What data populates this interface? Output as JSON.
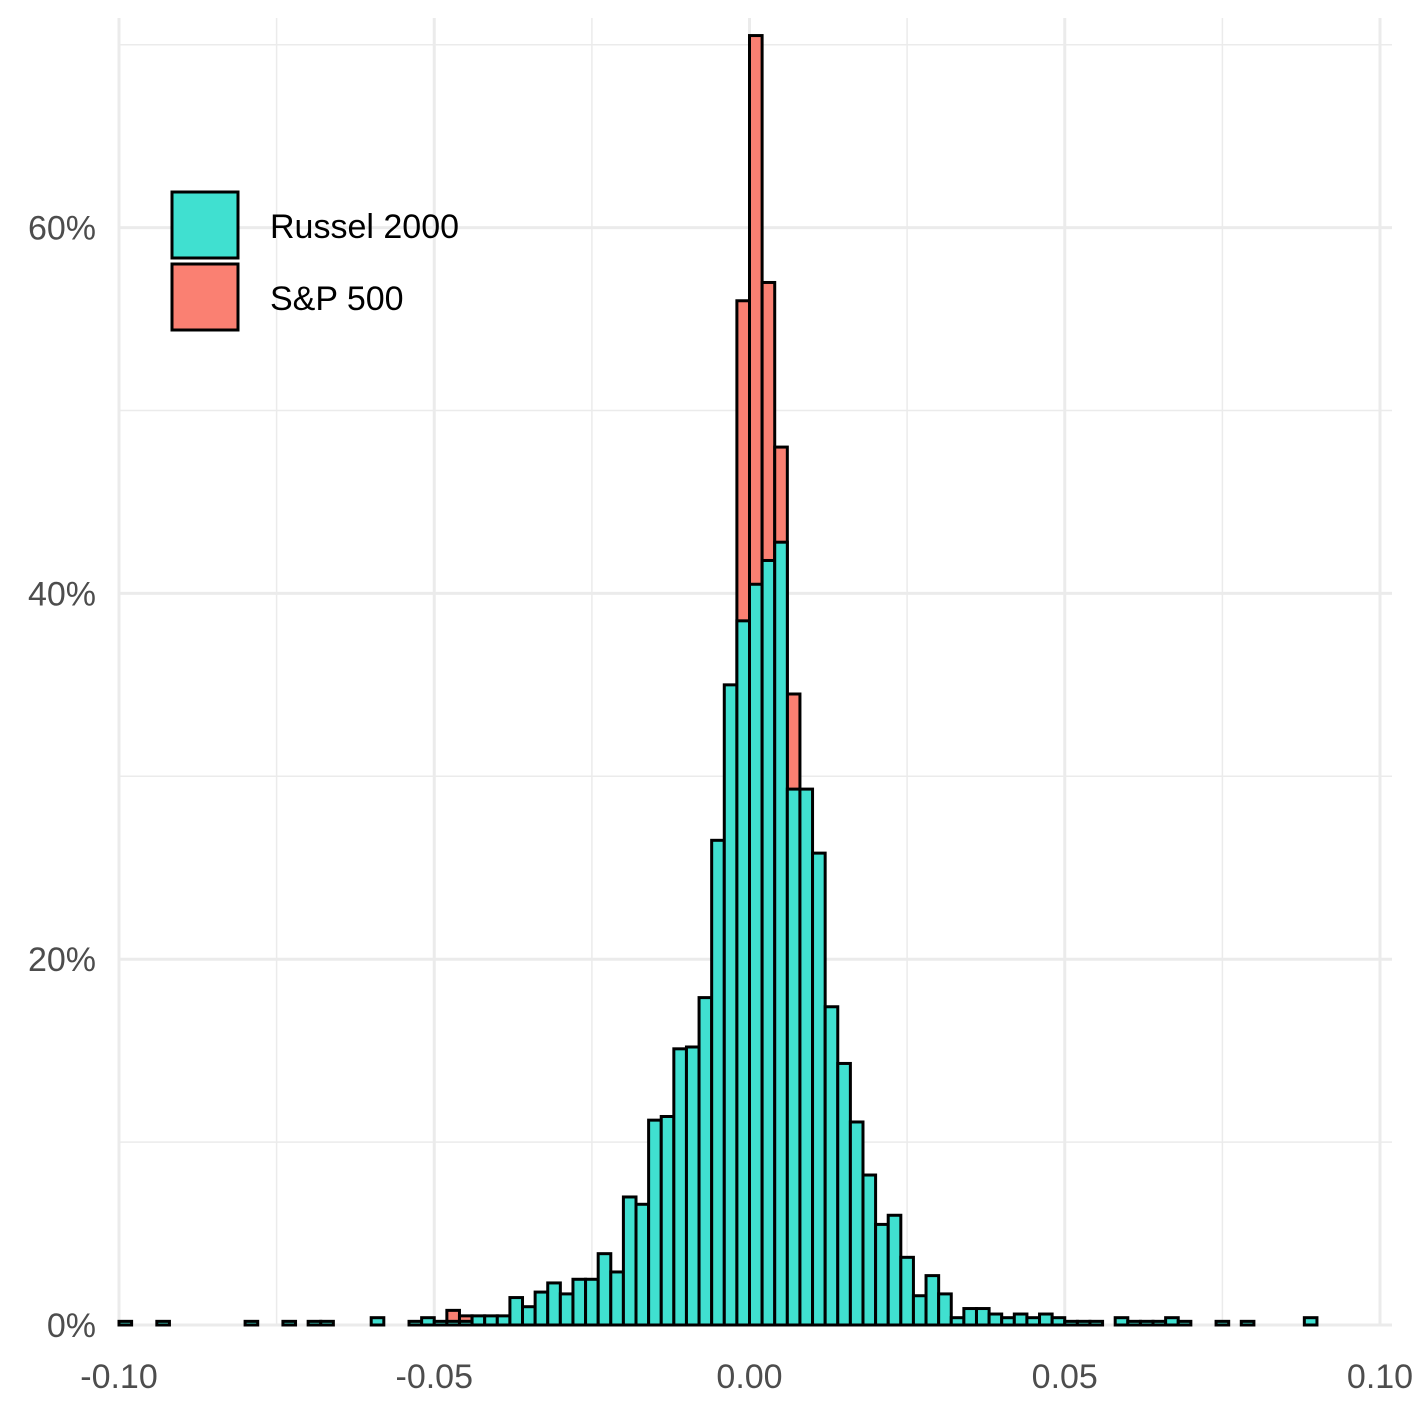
{
  "chart_data": {
    "type": "bar",
    "title": "",
    "xlabel": "",
    "ylabel": "",
    "xlim": [
      -0.1,
      0.1
    ],
    "ylim": [
      0,
      0.7
    ],
    "bin_width": 0.002,
    "grid": true,
    "legend_position": "top-left",
    "x_ticks": [
      {
        "value": -0.1,
        "label": "-0.10"
      },
      {
        "value": -0.05,
        "label": "-0.05"
      },
      {
        "value": 0.0,
        "label": "0.00"
      },
      {
        "value": 0.05,
        "label": "0.05"
      },
      {
        "value": 0.1,
        "label": "0.10"
      }
    ],
    "y_ticks": [
      {
        "value": 0.0,
        "label": "0%"
      },
      {
        "value": 0.2,
        "label": "20%"
      },
      {
        "value": 0.4,
        "label": "40%"
      },
      {
        "value": 0.6,
        "label": "60%"
      }
    ],
    "series": [
      {
        "name": "S&P 500",
        "color": "#FA8072",
        "bins": [
          [
            -0.048,
            0.008
          ],
          [
            -0.046,
            0.005
          ],
          [
            -0.044,
            0.004
          ],
          [
            -0.002,
            0.56
          ],
          [
            0.0,
            0.705
          ],
          [
            0.002,
            0.57
          ],
          [
            0.004,
            0.48
          ],
          [
            0.006,
            0.345
          ]
        ]
      },
      {
        "name": "Russel 2000",
        "color": "#40E0D0",
        "bins": [
          [
            -0.1,
            0.002
          ],
          [
            -0.094,
            0.002
          ],
          [
            -0.08,
            0.002
          ],
          [
            -0.074,
            0.002
          ],
          [
            -0.07,
            0.002
          ],
          [
            -0.068,
            0.002
          ],
          [
            -0.06,
            0.004
          ],
          [
            -0.054,
            0.002
          ],
          [
            -0.052,
            0.004
          ],
          [
            -0.05,
            0.002
          ],
          [
            -0.048,
            0.002
          ],
          [
            -0.046,
            0.002
          ],
          [
            -0.044,
            0.005
          ],
          [
            -0.042,
            0.005
          ],
          [
            -0.04,
            0.005
          ],
          [
            -0.038,
            0.015
          ],
          [
            -0.036,
            0.01
          ],
          [
            -0.034,
            0.018
          ],
          [
            -0.032,
            0.023
          ],
          [
            -0.03,
            0.017
          ],
          [
            -0.028,
            0.025
          ],
          [
            -0.026,
            0.025
          ],
          [
            -0.024,
            0.039
          ],
          [
            -0.022,
            0.029
          ],
          [
            -0.02,
            0.07
          ],
          [
            -0.018,
            0.066
          ],
          [
            -0.016,
            0.112
          ],
          [
            -0.014,
            0.114
          ],
          [
            -0.012,
            0.151
          ],
          [
            -0.01,
            0.152
          ],
          [
            -0.008,
            0.179
          ],
          [
            -0.006,
            0.265
          ],
          [
            -0.004,
            0.35
          ],
          [
            -0.002,
            0.385
          ],
          [
            0.0,
            0.405
          ],
          [
            0.002,
            0.418
          ],
          [
            0.004,
            0.428
          ],
          [
            0.006,
            0.293
          ],
          [
            0.008,
            0.293
          ],
          [
            0.01,
            0.258
          ],
          [
            0.012,
            0.174
          ],
          [
            0.014,
            0.143
          ],
          [
            0.016,
            0.111
          ],
          [
            0.018,
            0.082
          ],
          [
            0.02,
            0.055
          ],
          [
            0.022,
            0.06
          ],
          [
            0.024,
            0.037
          ],
          [
            0.026,
            0.016
          ],
          [
            0.028,
            0.027
          ],
          [
            0.03,
            0.017
          ],
          [
            0.032,
            0.004
          ],
          [
            0.034,
            0.009
          ],
          [
            0.036,
            0.009
          ],
          [
            0.038,
            0.006
          ],
          [
            0.04,
            0.004
          ],
          [
            0.042,
            0.006
          ],
          [
            0.044,
            0.004
          ],
          [
            0.046,
            0.006
          ],
          [
            0.048,
            0.004
          ],
          [
            0.05,
            0.002
          ],
          [
            0.052,
            0.002
          ],
          [
            0.054,
            0.002
          ],
          [
            0.058,
            0.004
          ],
          [
            0.06,
            0.002
          ],
          [
            0.062,
            0.002
          ],
          [
            0.064,
            0.002
          ],
          [
            0.066,
            0.004
          ],
          [
            0.068,
            0.002
          ],
          [
            0.074,
            0.002
          ],
          [
            0.078,
            0.002
          ],
          [
            0.088,
            0.004
          ]
        ]
      }
    ],
    "legend_order": [
      "Russel 2000",
      "S&P 500"
    ]
  }
}
